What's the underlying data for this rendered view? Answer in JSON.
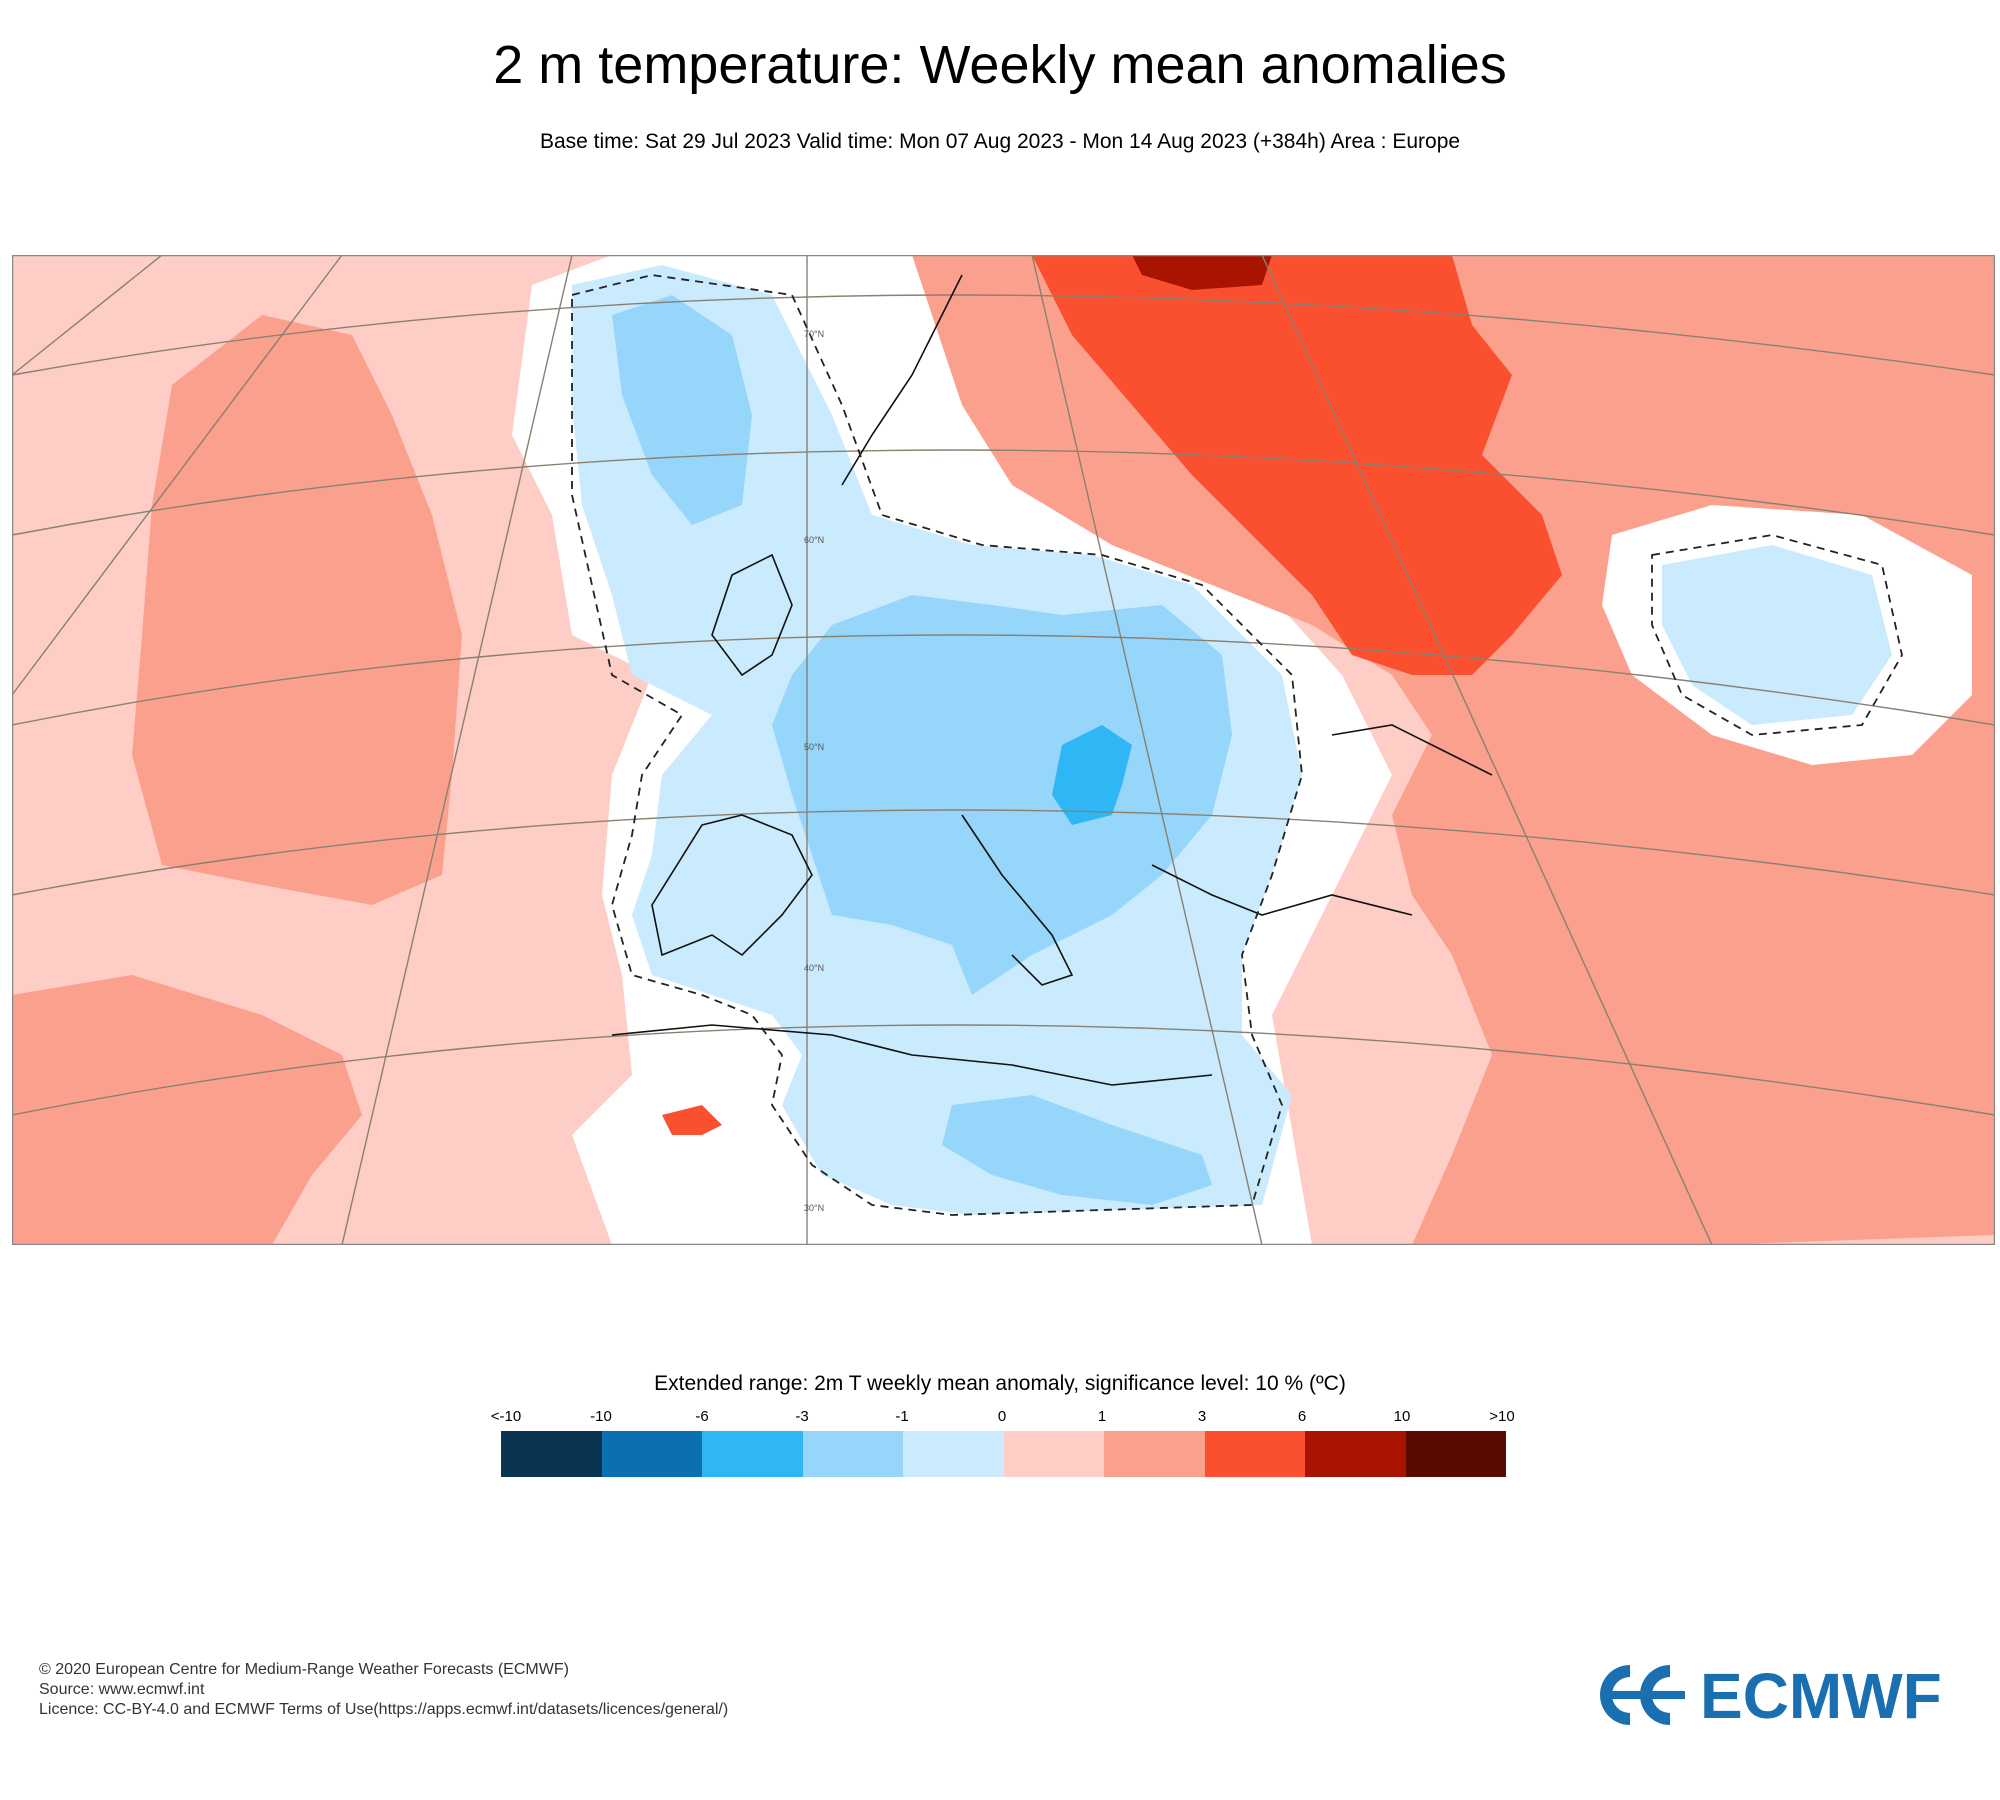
{
  "title": "2 m temperature: Weekly mean anomalies",
  "subtitle": "Base time: Sat 29 Jul 2023 Valid time: Mon 07 Aug 2023 - Mon 14 Aug 2023 (+384h) Area : Europe",
  "map": {
    "latitude_labels": [
      "70°N",
      "60°N",
      "50°N",
      "40°N",
      "30°N"
    ],
    "region": "Europe"
  },
  "legend": {
    "title": "Extended range: 2m T weekly mean anomaly, significance level: 10 % (ºC)",
    "tick_labels": [
      "<-10",
      "-10",
      "-6",
      "-3",
      "-1",
      "0",
      "1",
      "3",
      "6",
      "10",
      ">10"
    ],
    "colors": [
      "#0b3352",
      "#0a70b0",
      "#2eb6f5",
      "#96d6fb",
      "#caeafd",
      "#fdcdc6",
      "#fca08e",
      "#fb5030",
      "#a81400",
      "#5b0a00"
    ]
  },
  "footer": {
    "line1": "© 2020 European Centre for Medium-Range Weather Forecasts (ECMWF)",
    "line2": "Source: www.ecmwf.int",
    "line3": "Licence: CC-BY-4.0 and ECMWF Terms of Use(https://apps.ecmwf.int/datasets/licences/general/)"
  },
  "logo": {
    "text": "ECMWF",
    "color": "#1a6fb0"
  }
}
